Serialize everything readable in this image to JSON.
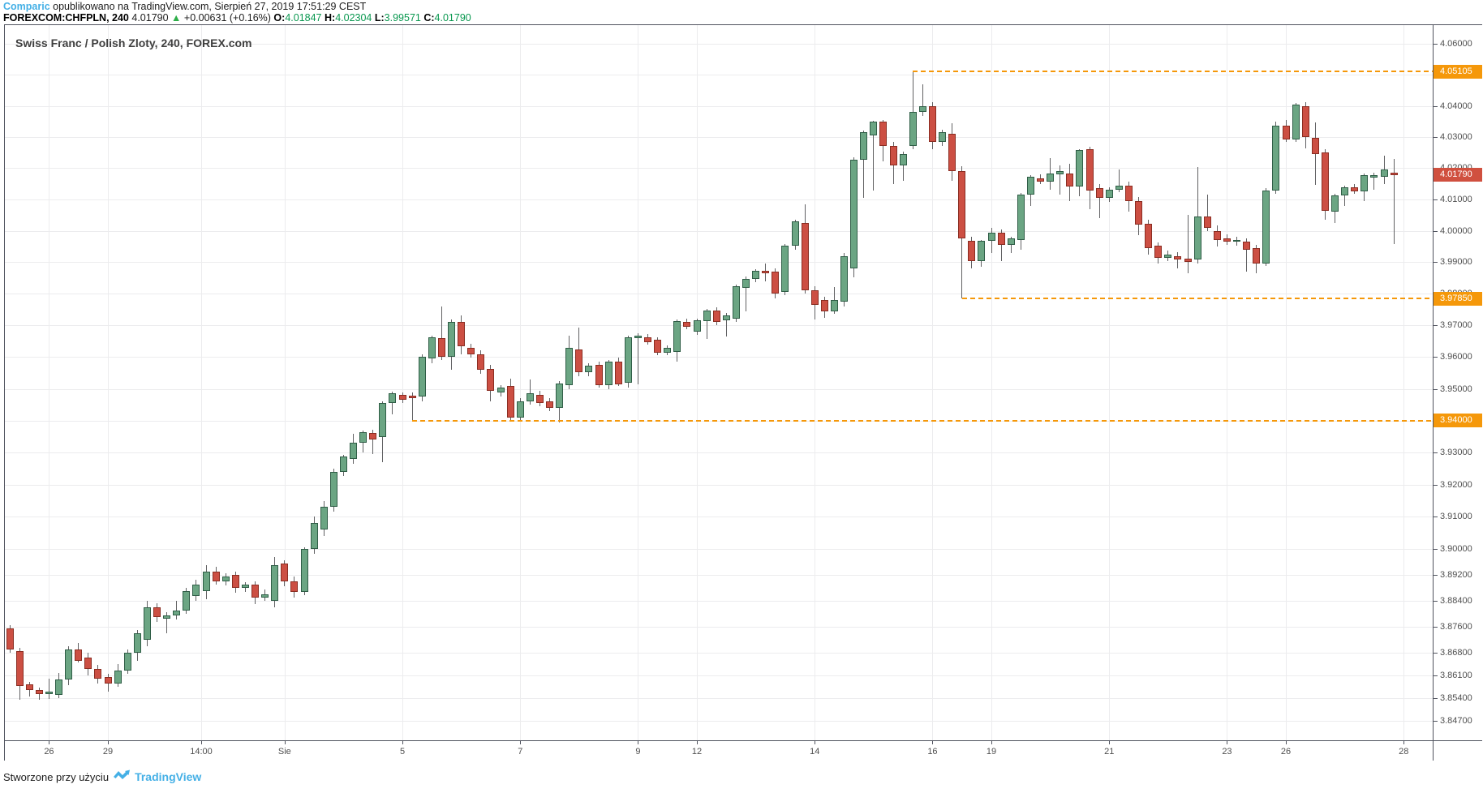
{
  "header": {
    "brand": "Comparic",
    "line1_rest": " opublikowano na TradingView.com, Sierpień 27, 2019 17:51:29 CEST",
    "symbol": "FOREXCOM:CHFPLN, 240",
    "last_price": "4.01790",
    "up_arrow": "▲",
    "change": "+0.00631 (+0.16%)",
    "o_label": "O:",
    "o_value": "4.01847",
    "h_label": "H:",
    "h_value": "4.02304",
    "l_label": "L:",
    "l_value": "3.99571",
    "c_label": "C:",
    "c_value": "4.01790"
  },
  "footer": {
    "made_with": "Stworzone przy użyciu",
    "tradingview": "TradingView"
  },
  "colors": {
    "up_fill": "#6ba583",
    "up_border": "#2f5d46",
    "down_fill": "#cc4f43",
    "down_border": "#8a2d22",
    "wick": "#616163",
    "grid": "#ececee",
    "axis_text": "#4f4f4f",
    "frame": "#50535e",
    "level_orange": "#f5980a",
    "badge_orange": "#f5980a",
    "badge_red": "#d0503f",
    "brand_blue": "#45b0e6",
    "value_green": "#0a9850",
    "arrow_green": "#2eae49"
  },
  "chart_data": {
    "type": "candlestick",
    "title": "Swiss Franc / Polish Zloty, 240, FOREX.com",
    "symbol": "FOREXCOM:CHFPLN",
    "interval": "240",
    "scale": "log",
    "price_top": 4.06603,
    "price_bottom": 3.84105,
    "slot_width": 12.1,
    "body_width": 9,
    "y_ticks": [
      "4.06000",
      "4.05000",
      "4.04000",
      "4.03000",
      "4.02000",
      "4.01000",
      "4.00000",
      "3.99000",
      "3.98000",
      "3.97000",
      "3.96000",
      "3.95000",
      "3.94000",
      "3.93000",
      "3.92000",
      "3.91000",
      "3.90000",
      "3.89200",
      "3.88400",
      "3.87600",
      "3.86800",
      "3.86100",
      "3.85400",
      "3.84700"
    ],
    "x_ticks": [
      {
        "label": "26",
        "slot": 4
      },
      {
        "label": "29",
        "slot": 10
      },
      {
        "label": "14:00",
        "slot": 19.5
      },
      {
        "label": "Sie",
        "slot": 28
      },
      {
        "label": "5",
        "slot": 40
      },
      {
        "label": "7",
        "slot": 52
      },
      {
        "label": "9",
        "slot": 64
      },
      {
        "label": "12",
        "slot": 70
      },
      {
        "label": "14",
        "slot": 82
      },
      {
        "label": "16",
        "slot": 94
      },
      {
        "label": "19",
        "slot": 100
      },
      {
        "label": "21",
        "slot": 112
      },
      {
        "label": "23",
        "slot": 124
      },
      {
        "label": "26",
        "slot": 130
      },
      {
        "label": "28",
        "slot": 142
      }
    ],
    "levels": [
      {
        "price": 4.05105,
        "label": "4.05105",
        "start_slot": 92
      },
      {
        "price": 3.9785,
        "label": "3.97850",
        "start_slot": 97
      },
      {
        "price": 3.94,
        "label": "3.94000",
        "start_slot": 41
      }
    ],
    "last": {
      "price": 4.0179,
      "label": "4.01790"
    },
    "candles": [
      [
        3.8755,
        3.8765,
        3.868,
        3.8688
      ],
      [
        3.8683,
        3.8695,
        3.8534,
        3.8576
      ],
      [
        3.8581,
        3.859,
        3.8545,
        3.8564
      ],
      [
        3.8564,
        3.8572,
        3.8535,
        3.8552
      ],
      [
        3.8552,
        3.86,
        3.8538,
        3.856
      ],
      [
        3.8549,
        3.8617,
        3.854,
        3.8598
      ],
      [
        3.8598,
        3.87,
        3.858,
        3.8688
      ],
      [
        3.8688,
        3.871,
        3.8648,
        3.8655
      ],
      [
        3.8665,
        3.8678,
        3.861,
        3.863
      ],
      [
        3.863,
        3.8642,
        3.8585,
        3.86
      ],
      [
        3.8605,
        3.8615,
        3.856,
        3.8585
      ],
      [
        3.8585,
        3.8645,
        3.8575,
        3.8625
      ],
      [
        3.8625,
        3.869,
        3.8615,
        3.868
      ],
      [
        3.868,
        3.875,
        3.8655,
        3.874
      ],
      [
        3.872,
        3.884,
        3.87,
        3.882
      ],
      [
        3.882,
        3.8832,
        3.8775,
        3.879
      ],
      [
        3.8785,
        3.8805,
        3.874,
        3.8795
      ],
      [
        3.8795,
        3.884,
        3.8782,
        3.881
      ],
      [
        3.881,
        3.888,
        3.88,
        3.887
      ],
      [
        3.8855,
        3.8905,
        3.884,
        3.889
      ],
      [
        3.887,
        3.895,
        3.8845,
        3.893
      ],
      [
        3.893,
        3.8945,
        3.889,
        3.89
      ],
      [
        3.89,
        3.8925,
        3.8888,
        3.8915
      ],
      [
        3.892,
        3.893,
        3.8865,
        3.888
      ],
      [
        3.888,
        3.8898,
        3.8868,
        3.889
      ],
      [
        3.889,
        3.89,
        3.883,
        3.885
      ],
      [
        3.885,
        3.8875,
        3.8838,
        3.886
      ],
      [
        3.884,
        3.8975,
        3.882,
        3.895
      ],
      [
        3.8955,
        3.8965,
        3.8885,
        3.89
      ],
      [
        3.89,
        3.8915,
        3.8848,
        3.8868
      ],
      [
        3.8868,
        3.9005,
        3.8858,
        3.9
      ],
      [
        3.9,
        3.91,
        3.8985,
        3.908
      ],
      [
        3.906,
        3.915,
        3.904,
        3.913
      ],
      [
        3.913,
        3.925,
        3.9115,
        3.924
      ],
      [
        3.924,
        3.9292,
        3.9228,
        3.9288
      ],
      [
        3.928,
        3.936,
        3.9265,
        3.933
      ],
      [
        3.933,
        3.9368,
        3.93,
        3.9365
      ],
      [
        3.9362,
        3.9372,
        3.9295,
        3.9342
      ],
      [
        3.935,
        3.9462,
        3.927,
        3.9455
      ],
      [
        3.9455,
        3.9492,
        3.942,
        3.9485
      ],
      [
        3.948,
        3.949,
        3.9455,
        3.9467
      ],
      [
        3.9478,
        3.9488,
        3.94,
        3.947
      ],
      [
        3.9475,
        3.9608,
        3.9462,
        3.96
      ],
      [
        3.9595,
        3.9668,
        3.958,
        3.9662
      ],
      [
        3.966,
        3.976,
        3.959,
        3.96
      ],
      [
        3.96,
        3.9718,
        3.956,
        3.9712
      ],
      [
        3.9712,
        3.9732,
        3.961,
        3.9634
      ],
      [
        3.963,
        3.9642,
        3.9598,
        3.961
      ],
      [
        3.961,
        3.9622,
        3.9548,
        3.956
      ],
      [
        3.9563,
        3.9575,
        3.9462,
        3.9495
      ],
      [
        3.949,
        3.9512,
        3.9475,
        3.9505
      ],
      [
        3.9508,
        3.9533,
        3.94,
        3.941
      ],
      [
        3.941,
        3.947,
        3.9398,
        3.9462
      ],
      [
        3.9462,
        3.953,
        3.945,
        3.9485
      ],
      [
        3.948,
        3.9495,
        3.9445,
        3.9455
      ],
      [
        3.946,
        3.947,
        3.943,
        3.944
      ],
      [
        3.944,
        3.9525,
        3.9394,
        3.9518
      ],
      [
        3.9512,
        3.9667,
        3.95,
        3.9628
      ],
      [
        3.9623,
        3.9692,
        3.954,
        3.9552
      ],
      [
        3.9553,
        3.958,
        3.954,
        3.9572
      ],
      [
        3.9575,
        3.9585,
        3.9505,
        3.9512
      ],
      [
        3.9512,
        3.9592,
        3.95,
        3.9585
      ],
      [
        3.9585,
        3.9598,
        3.9508,
        3.9515
      ],
      [
        3.952,
        3.9668,
        3.9505,
        3.9662
      ],
      [
        3.966,
        3.9675,
        3.9515,
        3.9668
      ],
      [
        3.9662,
        3.9672,
        3.964,
        3.9648
      ],
      [
        3.9655,
        3.9662,
        3.9605,
        3.9614
      ],
      [
        3.9614,
        3.9638,
        3.9605,
        3.963
      ],
      [
        3.9617,
        3.972,
        3.9585,
        3.9714
      ],
      [
        3.971,
        3.9722,
        3.9688,
        3.9695
      ],
      [
        3.968,
        3.9722,
        3.967,
        3.9715
      ],
      [
        3.9714,
        3.9752,
        3.9658,
        3.9747
      ],
      [
        3.9747,
        3.9758,
        3.97,
        3.971
      ],
      [
        3.9715,
        3.974,
        3.9665,
        3.9732
      ],
      [
        3.9722,
        3.983,
        3.9712,
        3.9823
      ],
      [
        3.9818,
        3.9855,
        3.9745,
        3.9848
      ],
      [
        3.9848,
        3.9878,
        3.9838,
        3.9872
      ],
      [
        3.9872,
        3.9895,
        3.984,
        3.9866
      ],
      [
        3.987,
        3.988,
        3.9785,
        3.98
      ],
      [
        3.9805,
        3.9958,
        3.9795,
        3.9953
      ],
      [
        3.9953,
        4.0035,
        3.994,
        4.003
      ],
      [
        4.0025,
        4.0085,
        3.98,
        3.981
      ],
      [
        3.981,
        3.9825,
        3.972,
        3.9765
      ],
      [
        3.978,
        3.979,
        3.9725,
        3.9745
      ],
      [
        3.9745,
        3.9822,
        3.9738,
        3.978
      ],
      [
        3.9775,
        3.993,
        3.976,
        3.9918
      ],
      [
        3.988,
        4.0235,
        3.9852,
        4.0227
      ],
      [
        4.0227,
        4.032,
        4.0105,
        4.0315
      ],
      [
        4.0305,
        4.0352,
        4.0128,
        4.0349
      ],
      [
        4.0349,
        4.0355,
        4.0222,
        4.0272
      ],
      [
        4.0272,
        4.0285,
        4.015,
        4.021
      ],
      [
        4.0208,
        4.0252,
        4.016,
        4.0245
      ],
      [
        4.0271,
        4.0511,
        4.0262,
        4.038
      ],
      [
        4.038,
        4.0468,
        4.0368,
        4.0398
      ],
      [
        4.04,
        4.0412,
        4.026,
        4.0285
      ],
      [
        4.0285,
        4.0322,
        4.0272,
        4.0315
      ],
      [
        4.031,
        4.0345,
        4.016,
        4.019
      ],
      [
        4.019,
        4.0205,
        3.9785,
        3.9975
      ],
      [
        3.9967,
        3.998,
        3.988,
        3.9903
      ],
      [
        3.9903,
        3.9972,
        3.9885,
        3.9967
      ],
      [
        3.9967,
        4.001,
        3.993,
        3.9995
      ],
      [
        3.9995,
        4.0005,
        3.9905,
        3.9955
      ],
      [
        3.9955,
        3.9982,
        3.993,
        3.9975
      ],
      [
        3.997,
        4.012,
        3.994,
        4.0115
      ],
      [
        4.0115,
        4.0178,
        4.008,
        4.0172
      ],
      [
        4.0168,
        4.018,
        4.0148,
        4.0158
      ],
      [
        4.0158,
        4.0232,
        4.013,
        4.0182
      ],
      [
        4.018,
        4.021,
        4.0115,
        4.019
      ],
      [
        4.0182,
        4.0215,
        4.0095,
        4.0142
      ],
      [
        4.0142,
        4.0262,
        4.011,
        4.0257
      ],
      [
        4.026,
        4.0268,
        4.0068,
        4.0128
      ],
      [
        4.0135,
        4.0148,
        4.004,
        4.0105
      ],
      [
        4.0105,
        4.0138,
        4.0092,
        4.013
      ],
      [
        4.013,
        4.0195,
        4.0122,
        4.0145
      ],
      [
        4.0145,
        4.0158,
        4.006,
        4.0095
      ],
      [
        4.0095,
        4.0108,
        3.9985,
        4.002
      ],
      [
        4.0022,
        4.0035,
        3.9925,
        3.9945
      ],
      [
        3.9952,
        3.9962,
        3.9895,
        3.9915
      ],
      [
        3.9915,
        3.9938,
        3.9905,
        3.9925
      ],
      [
        3.992,
        3.9932,
        3.988,
        3.991
      ],
      [
        3.9912,
        4.005,
        3.9865,
        3.99
      ],
      [
        3.9908,
        4.0204,
        3.9895,
        4.0047
      ],
      [
        4.0047,
        4.0115,
        4.0,
        4.001
      ],
      [
        4.0,
        4.0018,
        3.995,
        3.9972
      ],
      [
        3.9977,
        3.999,
        3.9955,
        3.9965
      ],
      [
        3.9965,
        3.998,
        3.9952,
        3.9972
      ],
      [
        3.9965,
        3.9975,
        3.987,
        3.994
      ],
      [
        3.9945,
        3.9955,
        3.9866,
        3.9897
      ],
      [
        3.9897,
        4.0135,
        3.9888,
        4.0128
      ],
      [
        4.0128,
        4.0349,
        4.0118,
        4.0335
      ],
      [
        4.0335,
        4.0355,
        4.0285,
        4.0293
      ],
      [
        4.0293,
        4.041,
        4.0285,
        4.0405
      ],
      [
        4.04,
        4.0412,
        4.0263,
        4.0301
      ],
      [
        4.0297,
        4.0347,
        4.0146,
        4.0246
      ],
      [
        4.0251,
        4.026,
        4.0036,
        4.0063
      ],
      [
        4.006,
        4.0118,
        4.0026,
        4.0113
      ],
      [
        4.0113,
        4.0145,
        4.008,
        4.0139
      ],
      [
        4.0139,
        4.0148,
        4.0118,
        4.0125
      ],
      [
        4.0125,
        4.0182,
        4.0095,
        4.0177
      ],
      [
        4.017,
        4.0185,
        4.013,
        4.0178
      ],
      [
        4.0172,
        4.024,
        4.015,
        4.0195
      ],
      [
        4.01847,
        4.02304,
        3.99571,
        4.0179
      ]
    ]
  }
}
